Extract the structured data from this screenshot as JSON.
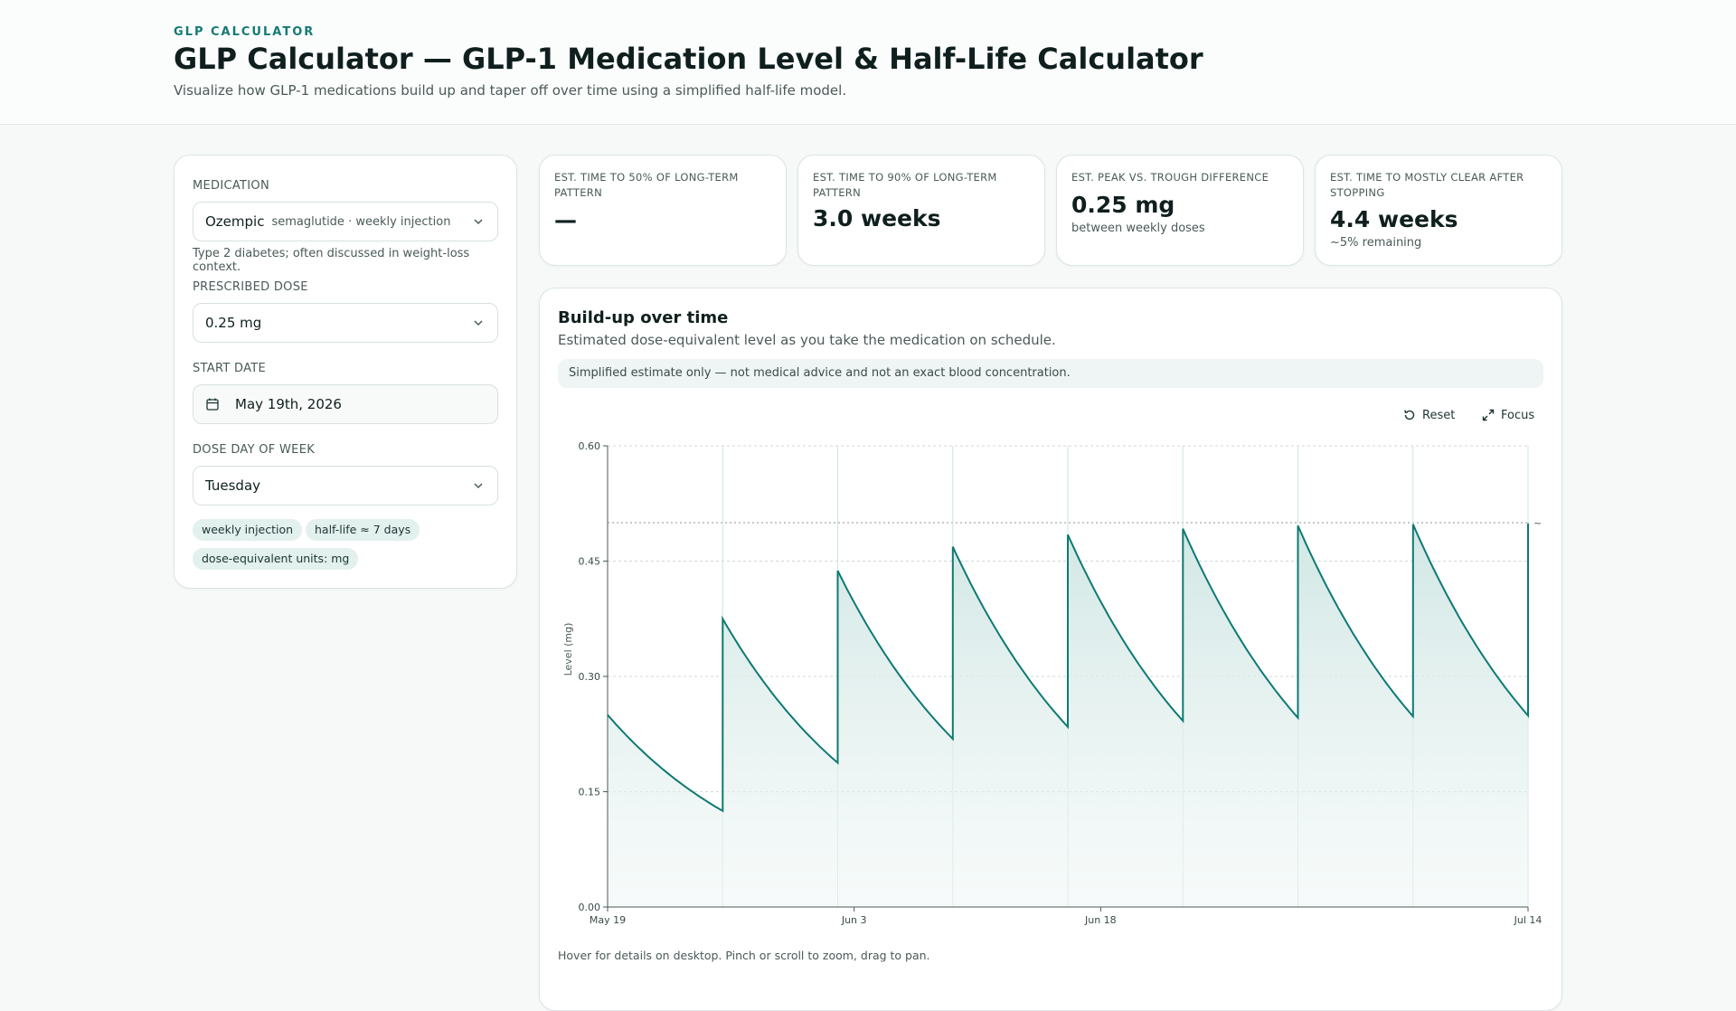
{
  "header": {
    "eyebrow": "GLP CALCULATOR",
    "title": "GLP Calculator — GLP-1 Medication Level & Half-Life Calculator",
    "subtitle": "Visualize how GLP-1 medications build up and taper off over time using a simplified half-life model."
  },
  "form": {
    "medication_label": "MEDICATION",
    "medication_value": "Ozempic",
    "medication_sub": "semaglutide · weekly injection",
    "medication_hint": "Type 2 diabetes; often discussed in weight-loss context.",
    "dose_label": "PRESCRIBED DOSE",
    "dose_value": "0.25 mg",
    "start_label": "START DATE",
    "start_value": "May 19th, 2026",
    "day_label": "DOSE DAY OF WEEK",
    "day_value": "Tuesday",
    "chips": [
      "weekly injection",
      "half-life ≈ 7 days",
      "dose-equivalent units: mg"
    ]
  },
  "stats": [
    {
      "label": "EST. TIME TO 50% OF LONG-TERM PATTERN",
      "value": "—",
      "note": ""
    },
    {
      "label": "EST. TIME TO 90% OF LONG-TERM PATTERN",
      "value": "3.0 weeks",
      "note": ""
    },
    {
      "label": "EST. PEAK VS. TROUGH DIFFERENCE",
      "value": "0.25 mg",
      "note": "between weekly doses"
    },
    {
      "label": "EST. TIME TO MOSTLY CLEAR AFTER STOPPING",
      "value": "4.4 weeks",
      "note": "~5% remaining"
    }
  ],
  "chart_card": {
    "title": "Build-up over time",
    "description": "Estimated dose-equivalent level as you take the medication on schedule.",
    "disclaimer": "Simplified estimate only — not medical advice and not an exact blood concentration.",
    "reset_label": "Reset",
    "focus_label": "Focus",
    "footnote": "Hover for details on desktop. Pinch or scroll to zoom, drag to pan."
  },
  "colors": {
    "accent": "#157a74",
    "line": "#0d7a72",
    "fill": "#d6ebe8"
  },
  "chart_data": {
    "type": "area",
    "title": "",
    "xlabel": "",
    "ylabel": "Level (mg)",
    "ylim": [
      0,
      0.6
    ],
    "yticks": [
      "0.00",
      "0.15",
      "0.30",
      "0.45",
      "0.60"
    ],
    "xticks": [
      {
        "label": "May 19",
        "day": 0
      },
      {
        "label": "Jun 3",
        "day": 15
      },
      {
        "label": "Jun 18",
        "day": 30
      },
      {
        "label": "Jul 14",
        "day": 56
      }
    ],
    "xlim_days": [
      0,
      56
    ],
    "dose_days": [
      0,
      7,
      14,
      21,
      28,
      35,
      42,
      49,
      56
    ],
    "dose_mg": 0.25,
    "half_life_days": 7,
    "steady_state_peak": 0.5,
    "steady_state_label": "~",
    "grid": true
  }
}
